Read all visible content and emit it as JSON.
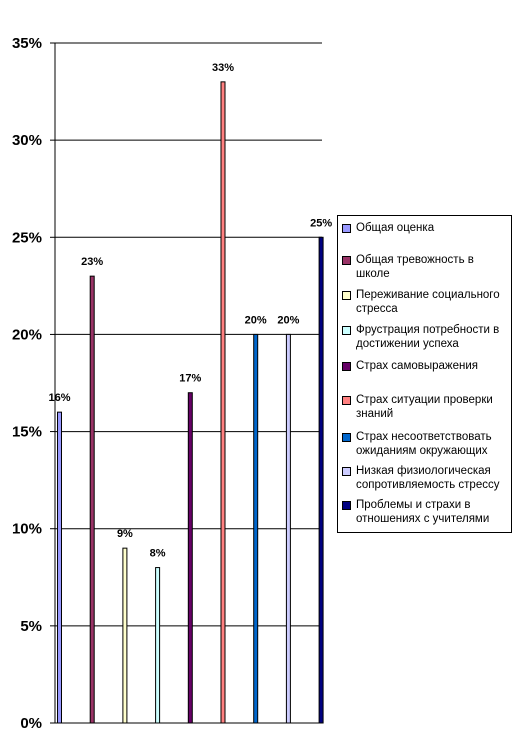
{
  "chart_data": {
    "type": "bar",
    "ylim": [
      0,
      35
    ],
    "y_ticks": [
      "0%",
      "5%",
      "10%",
      "15%",
      "20%",
      "25%",
      "30%",
      "35%"
    ],
    "y_tick_values": [
      0,
      5,
      10,
      15,
      20,
      25,
      30,
      35
    ],
    "grid": true,
    "legend_position": "right",
    "series": [
      {
        "name": "Общая оценка",
        "value": 16,
        "label": "16%",
        "color": "#9999ff"
      },
      {
        "name": "Общая тревожность в школе",
        "value": 23,
        "label": "23%",
        "color": "#993366"
      },
      {
        "name": "Переживание социального стресса",
        "value": 9,
        "label": "9%",
        "color": "#ffffcc"
      },
      {
        "name": "Фрустрация потребности в достижении успеха",
        "value": 8,
        "label": "8%",
        "color": "#ccffff"
      },
      {
        "name": "Страх самовыражения",
        "value": 17,
        "label": "17%",
        "color": "#660066"
      },
      {
        "name": "Страх ситуации проверки знаний",
        "value": 33,
        "label": "33%",
        "color": "#ff8080"
      },
      {
        "name": "Страх несоответствовать ожиданиям окружающих",
        "value": 20,
        "label": "20%",
        "color": "#0066cc"
      },
      {
        "name": "Низкая физиологическая сопротивляемость стрессу",
        "value": 20,
        "label": "20%",
        "color": "#ccccff"
      },
      {
        "name": "Проблемы и страхи в отношениях с учителями",
        "value": 25,
        "label": "25%",
        "color": "#000080"
      }
    ]
  }
}
